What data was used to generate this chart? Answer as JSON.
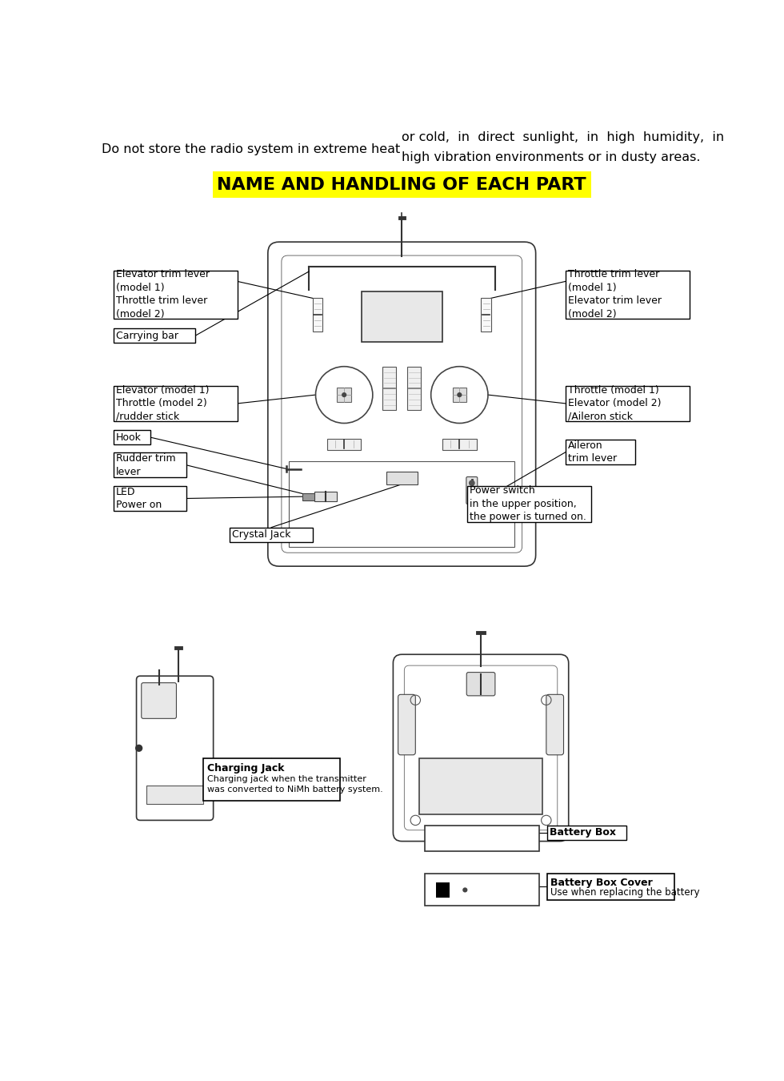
{
  "bg_color": "#ffffff",
  "title": "NAME AND HANDLING OF EACH PART",
  "title_bg": "#ffff00",
  "header_left": "Do not store the radio system in extreme heat",
  "header_right_line1": "or cold,  in  direct  sunlight,  in  high  humidity,  in",
  "header_right_line2": "high vibration environments or in dusty areas.",
  "labels": {
    "elevator_trim_lever": "Elevator trim lever\n(model 1)\nThrottle trim lever\n(model 2)",
    "throttle_trim_lever": "Throttle trim lever\n(model 1)\nElevator trim lever\n(model 2)",
    "carrying_bar": "Carrying bar",
    "elevator_model1": "Elevator (model 1)\nThrottle (model 2)\n/rudder stick",
    "throttle_model1": "Throttle (model 1)\nElevator (model 2)\n/Aileron stick",
    "hook": "Hook",
    "rudder_trim": "Rudder trim\nlever",
    "aileron_trim": "Aileron\ntrim lever",
    "led": "LED\nPower on",
    "power_switch": "Power switch\nin the upper position,\nthe power is turned on.",
    "crystal_jack": "Crystal Jack",
    "charging_jack_title": "Charging Jack",
    "charging_jack_body": "Charging jack when the transmitter\nwas converted to NiMh battery system.",
    "battery_box": "Battery Box",
    "battery_box_cover": "Battery Box Cover",
    "battery_box_cover_sub": "Use when replacing the battery"
  },
  "layout": {
    "fig_w": 9.8,
    "fig_h": 13.5,
    "dpi": 100,
    "xlim": [
      0,
      980
    ],
    "ylim": [
      0,
      1350
    ]
  }
}
